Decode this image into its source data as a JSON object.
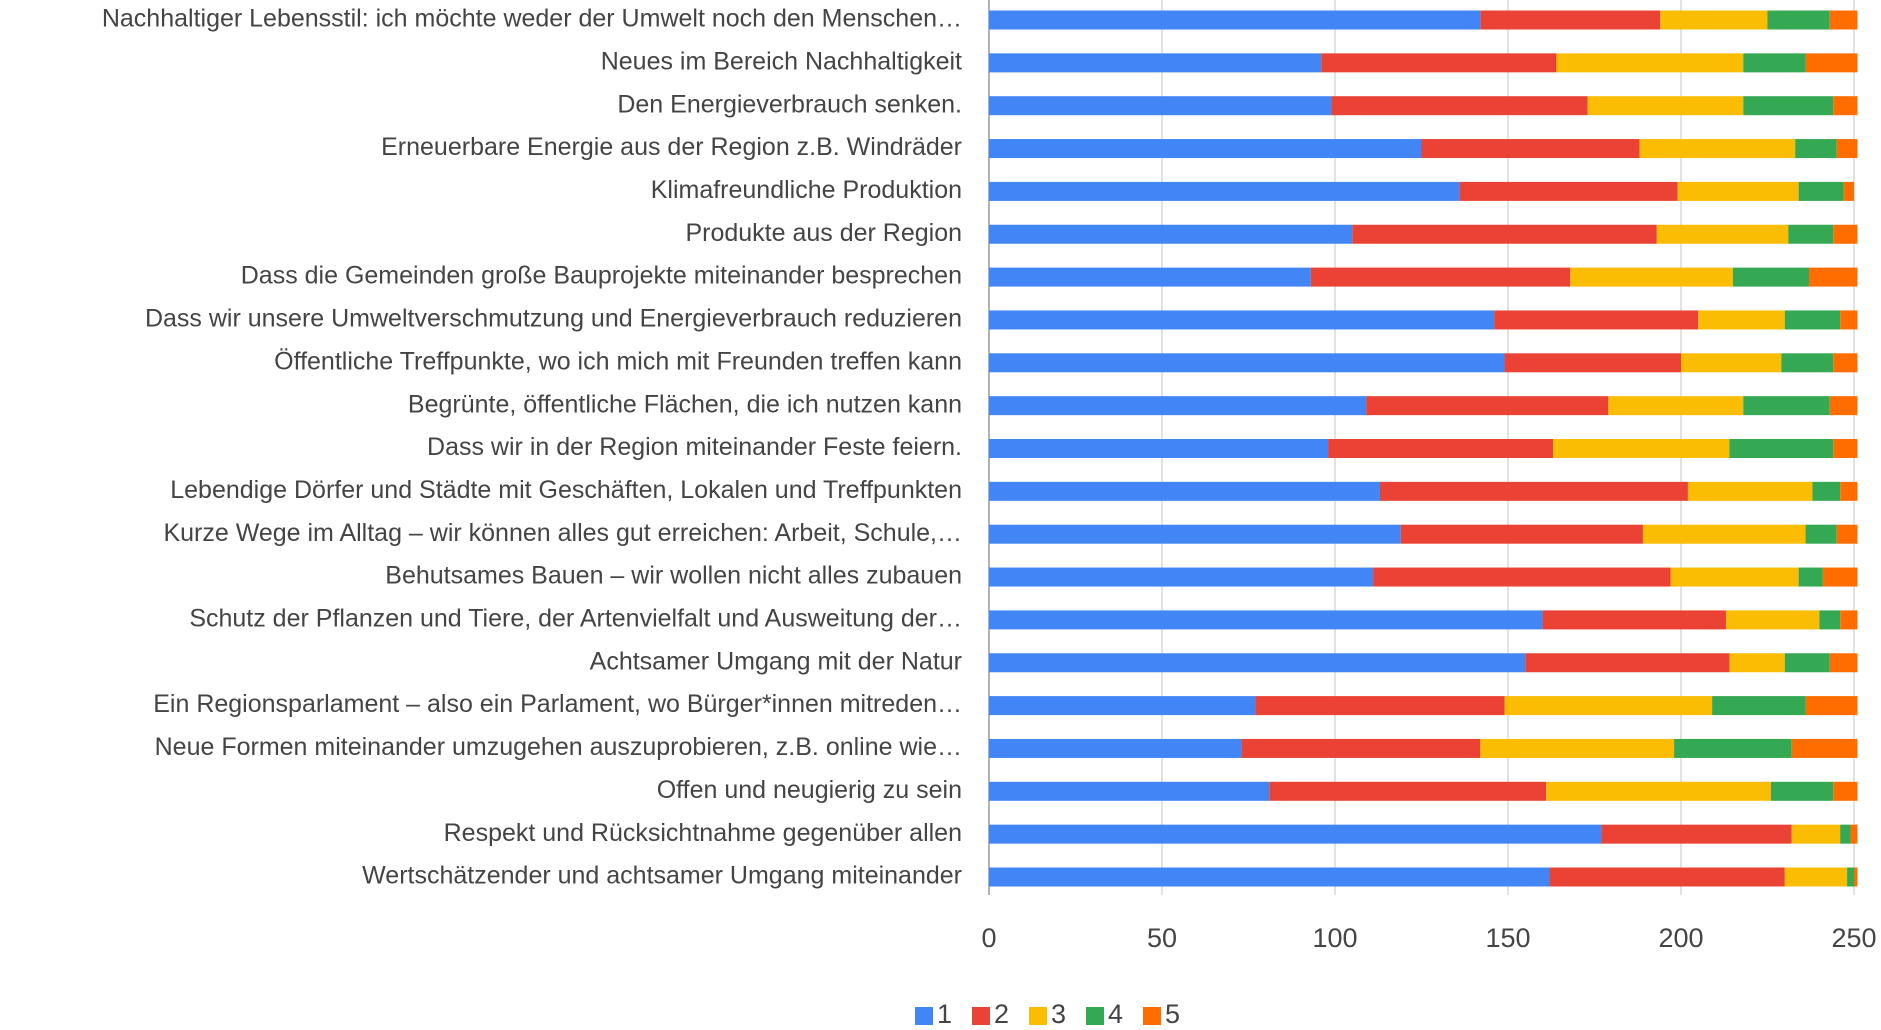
{
  "chart_data": {
    "type": "stacked_barh",
    "categories": [
      "Nachhaltiger Lebensstil: ich möchte weder der Umwelt noch den Menschen…",
      "Neues im Bereich Nachhaltigkeit",
      "Den Energieverbrauch senken.",
      "Erneuerbare Energie aus der Region z.B. Windräder",
      "Klimafreundliche Produktion",
      "Produkte aus der Region",
      "Dass die Gemeinden große Bauprojekte miteinander besprechen",
      "Dass wir unsere Umweltverschmutzung und Energieverbrauch reduzieren",
      "Öffentliche Treffpunkte, wo ich mich mit Freunden treffen kann",
      "Begrünte, öffentliche Flächen, die ich nutzen kann",
      "Dass wir in der Region miteinander Feste feiern.",
      "Lebendige Dörfer und Städte mit Geschäften, Lokalen und Treffpunkten",
      "Kurze Wege im Alltag – wir können alles gut erreichen: Arbeit, Schule,…",
      "Behutsames Bauen – wir wollen nicht alles zubauen",
      "Schutz der Pflanzen und Tiere, der Artenvielfalt und Ausweitung der…",
      "Achtsamer Umgang mit der Natur",
      "Ein Regionsparlament – also ein Parlament, wo Bürger*innen mitreden…",
      "Neue Formen miteinander umzugehen auszuprobieren, z.B. online wie…",
      "Offen und neugierig zu sein",
      "Respekt und Rücksichtnahme gegenüber allen",
      "Wertschätzender und achtsamer Umgang miteinander"
    ],
    "series": [
      {
        "name": "1",
        "color": "#4285f4",
        "values": [
          142,
          96,
          99,
          125,
          136,
          105,
          93,
          146,
          149,
          109,
          98,
          113,
          119,
          111,
          160,
          155,
          77,
          73,
          81,
          177,
          162
        ]
      },
      {
        "name": "2",
        "color": "#ea4335",
        "values": [
          52,
          68,
          74,
          63,
          63,
          88,
          75,
          59,
          51,
          70,
          65,
          89,
          70,
          86,
          53,
          59,
          72,
          69,
          80,
          55,
          68
        ]
      },
      {
        "name": "3",
        "color": "#fbbc04",
        "values": [
          31,
          54,
          45,
          45,
          35,
          38,
          47,
          25,
          29,
          39,
          51,
          36,
          47,
          37,
          27,
          16,
          60,
          56,
          65,
          14,
          18
        ]
      },
      {
        "name": "4",
        "color": "#34a853",
        "values": [
          18,
          18,
          26,
          12,
          13,
          13,
          22,
          16,
          15,
          25,
          30,
          8,
          9,
          7,
          6,
          13,
          27,
          34,
          18,
          3,
          2
        ]
      },
      {
        "name": "5",
        "color": "#ff6d01",
        "values": [
          8,
          15,
          7,
          6,
          3,
          7,
          14,
          5,
          7,
          8,
          7,
          5,
          6,
          10,
          5,
          8,
          15,
          19,
          7,
          2,
          1
        ]
      }
    ],
    "xlim": [
      0,
      250
    ],
    "xticks": [
      0,
      50,
      100,
      150,
      200,
      250
    ],
    "grid": true,
    "legend": "bottom"
  }
}
